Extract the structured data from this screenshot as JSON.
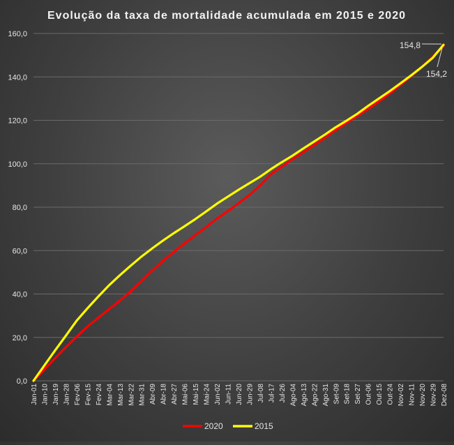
{
  "chart_data": {
    "type": "line",
    "title": "Evolução  da taxa de mortalidade  acumulada  em 2015 e 2020",
    "xlabel": "",
    "ylabel": "",
    "ylim": [
      0,
      160
    ],
    "ytick_labels": [
      "0,0",
      "20,0",
      "40,0",
      "60,0",
      "80,0",
      "100,0",
      "120,0",
      "140,0",
      "160,0"
    ],
    "ytick_values": [
      0,
      20,
      40,
      60,
      80,
      100,
      120,
      140,
      160
    ],
    "x_tick_labels": [
      "Jan-01",
      "Jan-10",
      "Jan-19",
      "Jan-28",
      "Fev-06",
      "Fev-15",
      "Fev-24",
      "Mar-04",
      "Mar-13",
      "Mar-22",
      "Mar-31",
      "Abr-09",
      "Abr-18",
      "Abr-27",
      "Mai-06",
      "Mai-15",
      "Mai-24",
      "Jun-02",
      "Jun-11",
      "Jun-20",
      "Jun-29",
      "Jul-08",
      "Jul-17",
      "Jul-26",
      "Ago-04",
      "Ago-13",
      "Ago-22",
      "Ago-31",
      "Set-09",
      "Set-18",
      "Set-27",
      "Out-06",
      "Out-15",
      "Out-24",
      "Nov-02",
      "Nov-11",
      "Nov-20",
      "Nov-29",
      "Dez-08"
    ],
    "grid": true,
    "legend_position": "bottom",
    "series": [
      {
        "name": "2020",
        "color": "#ff0000",
        "x": [
          "Jan-01",
          "Jan-10",
          "Jan-19",
          "Jan-28",
          "Fev-06",
          "Fev-15",
          "Fev-24",
          "Mar-04",
          "Mar-13",
          "Mar-22",
          "Mar-31",
          "Abr-09",
          "Abr-18",
          "Abr-27",
          "Mai-06",
          "Mai-15",
          "Mai-24",
          "Jun-02",
          "Jun-11",
          "Jun-20",
          "Jun-29",
          "Jul-08",
          "Jul-17",
          "Jul-26",
          "Ago-04",
          "Ago-13",
          "Ago-22",
          "Ago-31",
          "Set-09",
          "Set-18",
          "Set-27",
          "Out-06",
          "Out-15",
          "Out-24",
          "Nov-02",
          "Nov-11",
          "Nov-20",
          "Nov-29",
          "Dez-08"
        ],
        "values": [
          0,
          5.2,
          10.4,
          15.5,
          20.3,
          25.0,
          29.0,
          33.0,
          36.9,
          41.2,
          45.9,
          50.8,
          55.2,
          59.4,
          63.3,
          67.1,
          70.8,
          74.7,
          78.1,
          81.8,
          85.5,
          90.0,
          95.2,
          98.6,
          102.1,
          105.3,
          108.6,
          111.9,
          115.5,
          118.8,
          122.0,
          125.2,
          128.6,
          132.3,
          136.3,
          140.4,
          144.6,
          149.4,
          154.2
        ]
      },
      {
        "name": "2015",
        "color": "#ffff00",
        "x": [
          "Jan-01",
          "Jan-10",
          "Jan-19",
          "Jan-28",
          "Fev-06",
          "Fev-15",
          "Fev-24",
          "Mar-04",
          "Mar-13",
          "Mar-22",
          "Mar-31",
          "Abr-09",
          "Abr-18",
          "Abr-27",
          "Mai-06",
          "Mai-15",
          "Mai-24",
          "Jun-02",
          "Jun-11",
          "Jun-20",
          "Jun-29",
          "Jul-08",
          "Jul-17",
          "Jul-26",
          "Ago-04",
          "Ago-13",
          "Ago-22",
          "Ago-31",
          "Set-09",
          "Set-18",
          "Set-27",
          "Out-06",
          "Out-15",
          "Out-24",
          "Nov-02",
          "Nov-11",
          "Nov-20",
          "Nov-29",
          "Dez-08"
        ],
        "values": [
          0,
          7.0,
          14.0,
          20.8,
          27.7,
          33.4,
          38.8,
          44.0,
          48.6,
          53.0,
          57.2,
          61.0,
          64.6,
          68.0,
          71.2,
          74.5,
          78.0,
          81.6,
          84.8,
          88.0,
          91.0,
          94.0,
          97.5,
          100.7,
          103.7,
          107.0,
          110.2,
          113.4,
          116.8,
          119.8,
          123.0,
          126.6,
          130.0,
          133.4,
          137.0,
          140.7,
          144.6,
          148.8,
          154.8
        ]
      }
    ],
    "annotations": [
      {
        "text": "154,8",
        "series": "2015",
        "x": "Dez-08",
        "y": 154.8
      },
      {
        "text": "154,2",
        "series": "2020",
        "x": "Dez-08",
        "y": 154.2
      }
    ]
  }
}
